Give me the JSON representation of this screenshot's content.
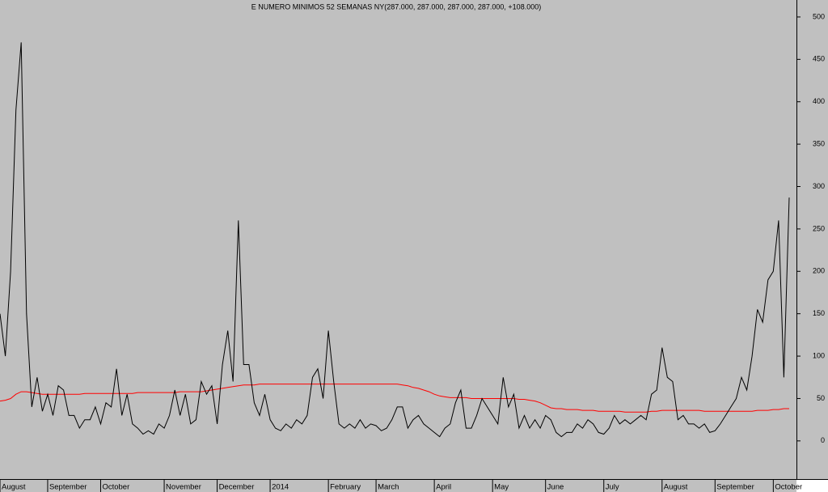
{
  "chart_data": {
    "type": "line",
    "title": "E NUMERO MINIMOS 52 SEMANAS NY(287.000, 287.000, 287.000, 287.000, +108.000)",
    "categories": [
      "August",
      null,
      null,
      null,
      null,
      null,
      null,
      null,
      null,
      "September",
      null,
      null,
      null,
      null,
      null,
      null,
      null,
      null,
      null,
      "October",
      null,
      null,
      null,
      null,
      null,
      null,
      null,
      null,
      null,
      null,
      null,
      "November",
      null,
      null,
      null,
      null,
      null,
      null,
      null,
      null,
      null,
      "December",
      null,
      null,
      null,
      null,
      null,
      null,
      null,
      null,
      null,
      "2014",
      null,
      null,
      null,
      null,
      null,
      null,
      null,
      null,
      null,
      null,
      "February",
      null,
      null,
      null,
      null,
      null,
      null,
      null,
      null,
      "March",
      null,
      null,
      null,
      null,
      null,
      null,
      null,
      null,
      null,
      null,
      "April",
      null,
      null,
      null,
      null,
      null,
      null,
      null,
      null,
      null,
      null,
      "May",
      null,
      null,
      null,
      null,
      null,
      null,
      null,
      null,
      null,
      "June",
      null,
      null,
      null,
      null,
      null,
      null,
      null,
      null,
      null,
      null,
      "July",
      null,
      null,
      null,
      null,
      null,
      null,
      null,
      null,
      null,
      null,
      "August",
      null,
      null,
      null,
      null,
      null,
      null,
      null,
      null,
      null,
      "September",
      null,
      null,
      null,
      null,
      null,
      null,
      null,
      null,
      null,
      null,
      "October",
      null,
      null,
      null
    ],
    "series": [
      {
        "color": "#000000",
        "values": [
          150,
          100,
          200,
          390,
          470,
          150,
          40,
          75,
          35,
          55,
          30,
          65,
          60,
          30,
          30,
          15,
          25,
          25,
          40,
          20,
          45,
          40,
          85,
          30,
          55,
          20,
          15,
          8,
          12,
          8,
          20,
          15,
          30,
          60,
          30,
          55,
          20,
          25,
          70,
          55,
          65,
          20,
          90,
          130,
          70,
          260,
          90,
          90,
          45,
          30,
          55,
          25,
          15,
          12,
          20,
          15,
          25,
          20,
          30,
          75,
          85,
          50,
          130,
          70,
          20,
          15,
          20,
          15,
          25,
          15,
          20,
          18,
          12,
          15,
          25,
          40,
          40,
          15,
          25,
          30,
          20,
          15,
          10,
          5,
          15,
          20,
          45,
          60,
          15,
          15,
          30,
          50,
          40,
          30,
          20,
          75,
          40,
          55,
          15,
          30,
          15,
          25,
          15,
          30,
          25,
          10,
          5,
          10,
          10,
          20,
          15,
          25,
          20,
          10,
          8,
          15,
          30,
          20,
          25,
          20,
          25,
          30,
          25,
          55,
          60,
          110,
          75,
          70,
          25,
          30,
          20,
          20,
          15,
          20,
          10,
          12,
          20,
          30,
          40,
          50,
          75,
          60,
          100,
          155,
          140,
          190,
          200,
          260,
          75,
          287
        ]
      },
      {
        "color": "#ff0000",
        "values": [
          47,
          48,
          50,
          55,
          58,
          58,
          57,
          56,
          55,
          55,
          55,
          55,
          55,
          55,
          55,
          55,
          56,
          56,
          56,
          56,
          56,
          56,
          56,
          56,
          56,
          56,
          57,
          57,
          57,
          57,
          57,
          57,
          57,
          57,
          58,
          58,
          58,
          58,
          58,
          59,
          60,
          61,
          62,
          63,
          64,
          65,
          66,
          66,
          66,
          67,
          67,
          67,
          67,
          67,
          67,
          67,
          67,
          67,
          67,
          67,
          67,
          67,
          67,
          67,
          67,
          67,
          67,
          67,
          67,
          67,
          67,
          67,
          67,
          67,
          67,
          67,
          66,
          65,
          63,
          62,
          60,
          58,
          55,
          53,
          52,
          51,
          51,
          51,
          51,
          50,
          50,
          50,
          50,
          50,
          50,
          50,
          50,
          50,
          49,
          49,
          48,
          47,
          45,
          42,
          39,
          38,
          38,
          37,
          37,
          37,
          36,
          36,
          36,
          35,
          35,
          35,
          35,
          35,
          34,
          34,
          34,
          34,
          34,
          35,
          35,
          36,
          36,
          36,
          36,
          36,
          36,
          36,
          36,
          35,
          35,
          35,
          35,
          35,
          35,
          35,
          35,
          35,
          35,
          36,
          36,
          36,
          37,
          37,
          38,
          38
        ]
      }
    ],
    "ylim": [
      -45,
      520
    ],
    "yticks": [
      0,
      50,
      100,
      150,
      200,
      250,
      300,
      350,
      400,
      450,
      500
    ]
  }
}
